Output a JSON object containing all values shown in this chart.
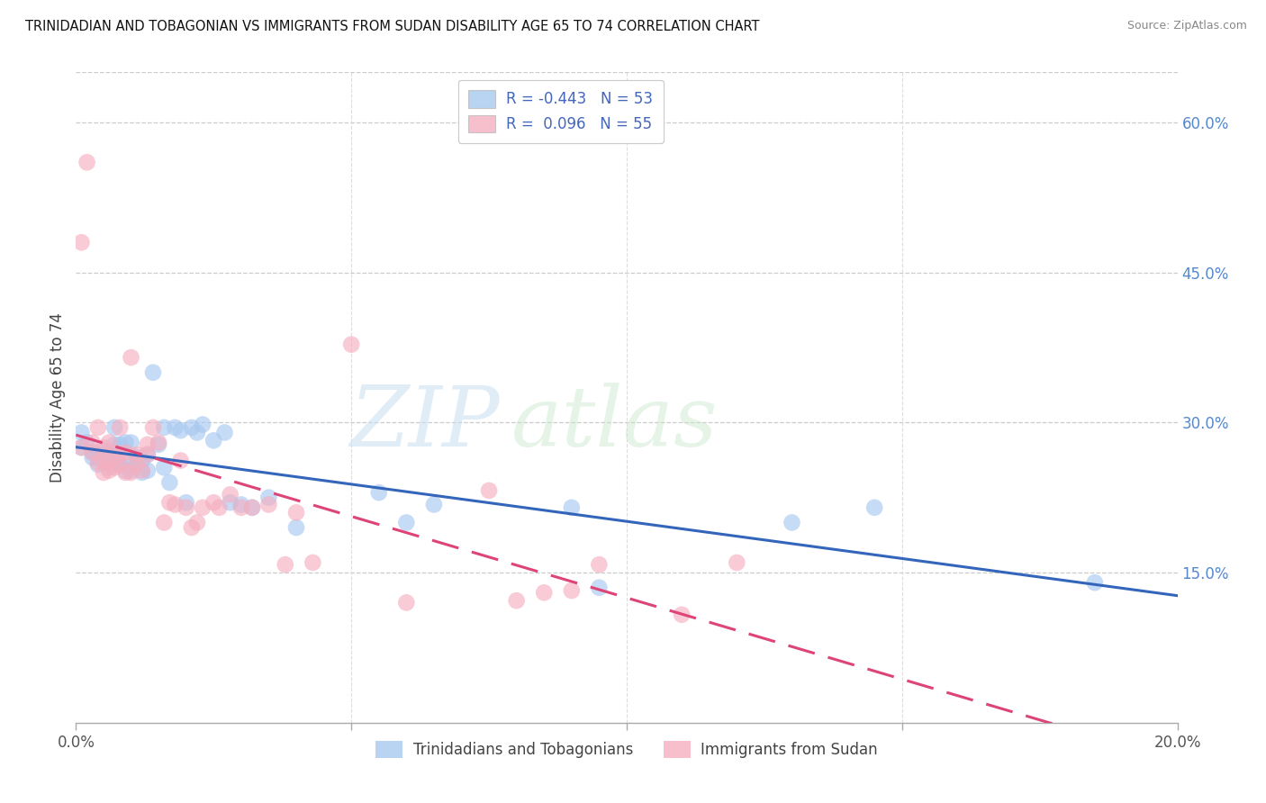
{
  "title": "TRINIDADIAN AND TOBAGONIAN VS IMMIGRANTS FROM SUDAN DISABILITY AGE 65 TO 74 CORRELATION CHART",
  "source": "Source: ZipAtlas.com",
  "ylabel": "Disability Age 65 to 74",
  "x_min": 0.0,
  "x_max": 0.2,
  "y_min": 0.0,
  "y_max": 0.65,
  "legend_labels_bottom": [
    "Trinidadians and Tobagonians",
    "Immigrants from Sudan"
  ],
  "blue_color": "#a8c8f0",
  "pink_color": "#f5afc0",
  "blue_line_color": "#3366bb",
  "pink_line_color": "#dd4477",
  "watermark_zip": "ZIP",
  "watermark_atlas": "atlas",
  "blue_points_x": [
    0.001,
    0.001,
    0.002,
    0.003,
    0.003,
    0.004,
    0.004,
    0.005,
    0.005,
    0.006,
    0.006,
    0.007,
    0.007,
    0.007,
    0.008,
    0.008,
    0.009,
    0.009,
    0.009,
    0.01,
    0.01,
    0.011,
    0.011,
    0.012,
    0.012,
    0.013,
    0.013,
    0.014,
    0.015,
    0.016,
    0.016,
    0.017,
    0.018,
    0.019,
    0.02,
    0.021,
    0.022,
    0.023,
    0.025,
    0.027,
    0.028,
    0.03,
    0.032,
    0.035,
    0.04,
    0.055,
    0.06,
    0.065,
    0.09,
    0.095,
    0.13,
    0.145,
    0.185
  ],
  "blue_points_y": [
    0.29,
    0.275,
    0.28,
    0.265,
    0.27,
    0.258,
    0.268,
    0.262,
    0.272,
    0.255,
    0.27,
    0.268,
    0.278,
    0.295,
    0.258,
    0.278,
    0.252,
    0.262,
    0.28,
    0.252,
    0.28,
    0.258,
    0.265,
    0.25,
    0.262,
    0.252,
    0.268,
    0.35,
    0.278,
    0.295,
    0.255,
    0.24,
    0.295,
    0.292,
    0.22,
    0.295,
    0.29,
    0.298,
    0.282,
    0.29,
    0.22,
    0.218,
    0.215,
    0.225,
    0.195,
    0.23,
    0.2,
    0.218,
    0.215,
    0.135,
    0.2,
    0.215,
    0.14
  ],
  "pink_points_x": [
    0.001,
    0.001,
    0.002,
    0.003,
    0.003,
    0.004,
    0.004,
    0.005,
    0.005,
    0.005,
    0.006,
    0.006,
    0.006,
    0.007,
    0.007,
    0.008,
    0.008,
    0.008,
    0.009,
    0.009,
    0.01,
    0.01,
    0.011,
    0.011,
    0.012,
    0.013,
    0.013,
    0.014,
    0.015,
    0.016,
    0.017,
    0.018,
    0.019,
    0.02,
    0.021,
    0.022,
    0.023,
    0.025,
    0.026,
    0.028,
    0.03,
    0.032,
    0.035,
    0.038,
    0.04,
    0.043,
    0.05,
    0.06,
    0.075,
    0.08,
    0.085,
    0.09,
    0.095,
    0.11,
    0.12
  ],
  "pink_points_y": [
    0.275,
    0.48,
    0.56,
    0.27,
    0.28,
    0.26,
    0.295,
    0.25,
    0.262,
    0.275,
    0.252,
    0.26,
    0.28,
    0.255,
    0.27,
    0.258,
    0.268,
    0.295,
    0.25,
    0.27,
    0.25,
    0.365,
    0.268,
    0.258,
    0.252,
    0.268,
    0.278,
    0.295,
    0.28,
    0.2,
    0.22,
    0.218,
    0.262,
    0.215,
    0.195,
    0.2,
    0.215,
    0.22,
    0.215,
    0.228,
    0.215,
    0.215,
    0.218,
    0.158,
    0.21,
    0.16,
    0.378,
    0.12,
    0.232,
    0.122,
    0.13,
    0.132,
    0.158,
    0.108,
    0.16
  ]
}
